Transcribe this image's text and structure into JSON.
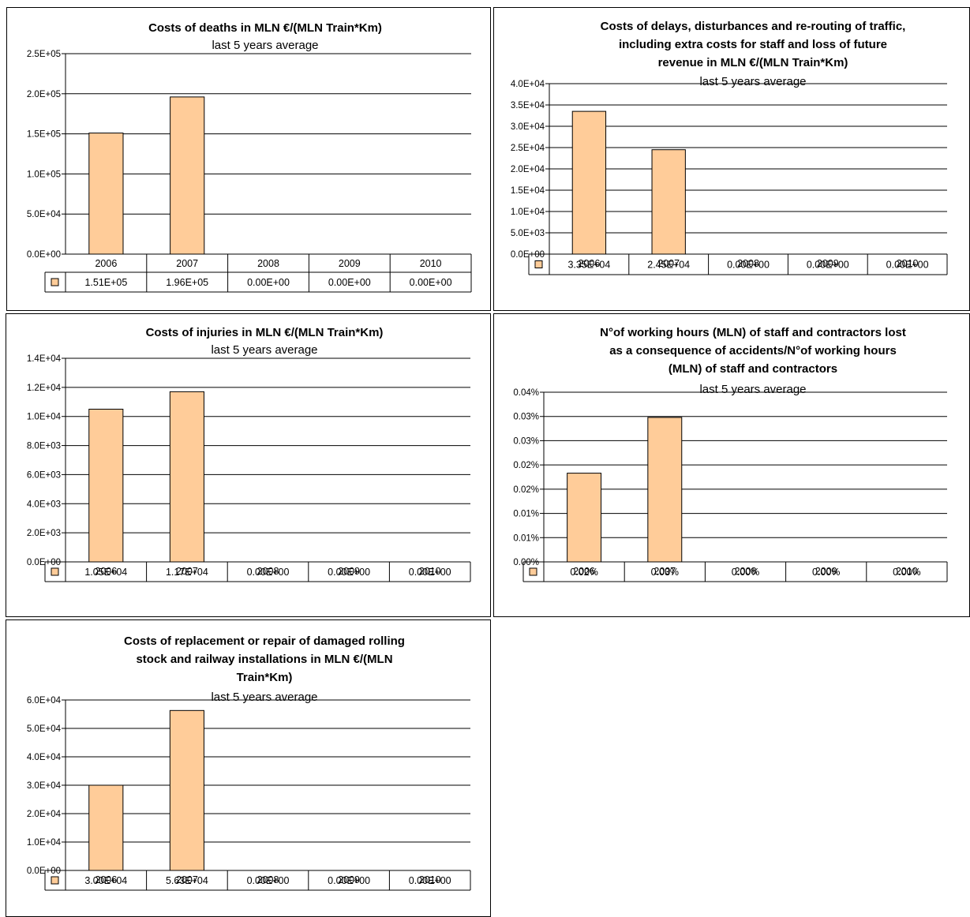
{
  "chart_data": [
    {
      "type": "bar",
      "title": [
        "Costs of  deaths in MLN €/(MLN Train*Km)"
      ],
      "subtitle": "last 5 years average",
      "categories": [
        "2006",
        "2007",
        "2008",
        "2009",
        "2010"
      ],
      "values": [
        151000,
        196000,
        0,
        0,
        0
      ],
      "value_labels": [
        "1.51E+05",
        "1.96E+05",
        "0.00E+00",
        "0.00E+00",
        "0.00E+00"
      ],
      "yticks": [
        0,
        50000,
        100000,
        150000,
        200000,
        250000
      ],
      "ytick_labels": [
        "0.0E+00",
        "5.0E+04",
        "1.0E+05",
        "1.5E+05",
        "2.0E+05",
        "2.5E+05"
      ],
      "ylim": [
        0,
        250000
      ],
      "grid": true,
      "legend": "data-table",
      "bar_color": "#FFCC99"
    },
    {
      "type": "bar",
      "title": [
        "Costs of delays, disturbances and re-routing of traffic,",
        "including extra costs for staff and loss of future",
        "revenue in MLN €/(MLN Train*Km)"
      ],
      "subtitle": "last 5 years average",
      "categories": [
        "2006",
        "2007",
        "2008",
        "2009",
        "2010"
      ],
      "values": [
        33500,
        24500,
        0,
        0,
        0
      ],
      "value_labels": [
        "3.35E+04",
        "2.45E+04",
        "0.00E+00",
        "0.00E+00",
        "0.00E+00"
      ],
      "yticks": [
        0,
        5000,
        10000,
        15000,
        20000,
        25000,
        30000,
        35000,
        40000
      ],
      "ytick_labels": [
        "0.0E+00",
        "5.0E+03",
        "1.0E+04",
        "1.5E+04",
        "2.0E+04",
        "2.5E+04",
        "3.0E+04",
        "3.5E+04",
        "4.0E+04"
      ],
      "ylim": [
        0,
        40000
      ],
      "grid": true,
      "legend": "data-table",
      "bar_color": "#FFCC99"
    },
    {
      "type": "bar",
      "title": [
        "Costs of injuries in MLN €/(MLN Train*Km)"
      ],
      "subtitle": "last 5 years average",
      "categories": [
        "2006",
        "2007",
        "2008",
        "2009",
        "2010"
      ],
      "values": [
        10500,
        11700,
        0,
        0,
        0
      ],
      "value_labels": [
        "1.05E+04",
        "1.17E+04",
        "0.00E+00",
        "0.00E+00",
        "0.00E+00"
      ],
      "yticks": [
        0,
        2000,
        4000,
        6000,
        8000,
        10000,
        12000,
        14000
      ],
      "ytick_labels": [
        "0.0E+00",
        "2.0E+03",
        "4.0E+03",
        "6.0E+03",
        "8.0E+03",
        "1.0E+04",
        "1.2E+04",
        "1.4E+04"
      ],
      "ylim": [
        0,
        14000
      ],
      "grid": true,
      "legend": "data-table",
      "bar_color": "#FFCC99"
    },
    {
      "type": "bar",
      "title": [
        "N°of working hours (MLN) of staff and contractors lost",
        "as a consequence of accidents/N°of working hours",
        "(MLN) of staff and contractors"
      ],
      "subtitle": "last 5 years average",
      "categories": [
        "2006",
        "2007",
        "2008",
        "2009",
        "2010"
      ],
      "values": [
        0.0183,
        0.0298,
        0,
        0,
        0
      ],
      "value_labels": [
        "0.02%",
        "0.03%",
        "0.00%",
        "0.00%",
        "0.00%"
      ],
      "yticks": [
        0,
        0.005,
        0.01,
        0.015,
        0.02,
        0.025,
        0.03,
        0.035
      ],
      "ytick_labels": [
        "0.00%",
        "0.01%",
        "0.01%",
        "0.02%",
        "0.02%",
        "0.03%",
        "0.03%",
        "0.04%"
      ],
      "ylim": [
        0,
        0.035
      ],
      "grid": true,
      "legend": "data-table",
      "bar_color": "#FFCC99"
    },
    {
      "type": "bar",
      "title": [
        "Costs of replacement or repair of damaged rolling",
        "stock and railway installations in MLN €/(MLN",
        "Train*Km)"
      ],
      "subtitle": "last 5 years average",
      "categories": [
        "2006",
        "2007",
        "2008",
        "2009",
        "2010"
      ],
      "values": [
        30000,
        56300,
        0,
        0,
        0
      ],
      "value_labels": [
        "3.00E+04",
        "5.63E+04",
        "0.00E+00",
        "0.00E+00",
        "0.00E+00"
      ],
      "yticks": [
        0,
        10000,
        20000,
        30000,
        40000,
        50000,
        60000
      ],
      "ytick_labels": [
        "0.0E+00",
        "1.0E+04",
        "2.0E+04",
        "3.0E+04",
        "4.0E+04",
        "5.0E+04",
        "6.0E+04"
      ],
      "ylim": [
        0,
        60000
      ],
      "grid": true,
      "legend": "data-table",
      "bar_color": "#FFCC99"
    }
  ]
}
